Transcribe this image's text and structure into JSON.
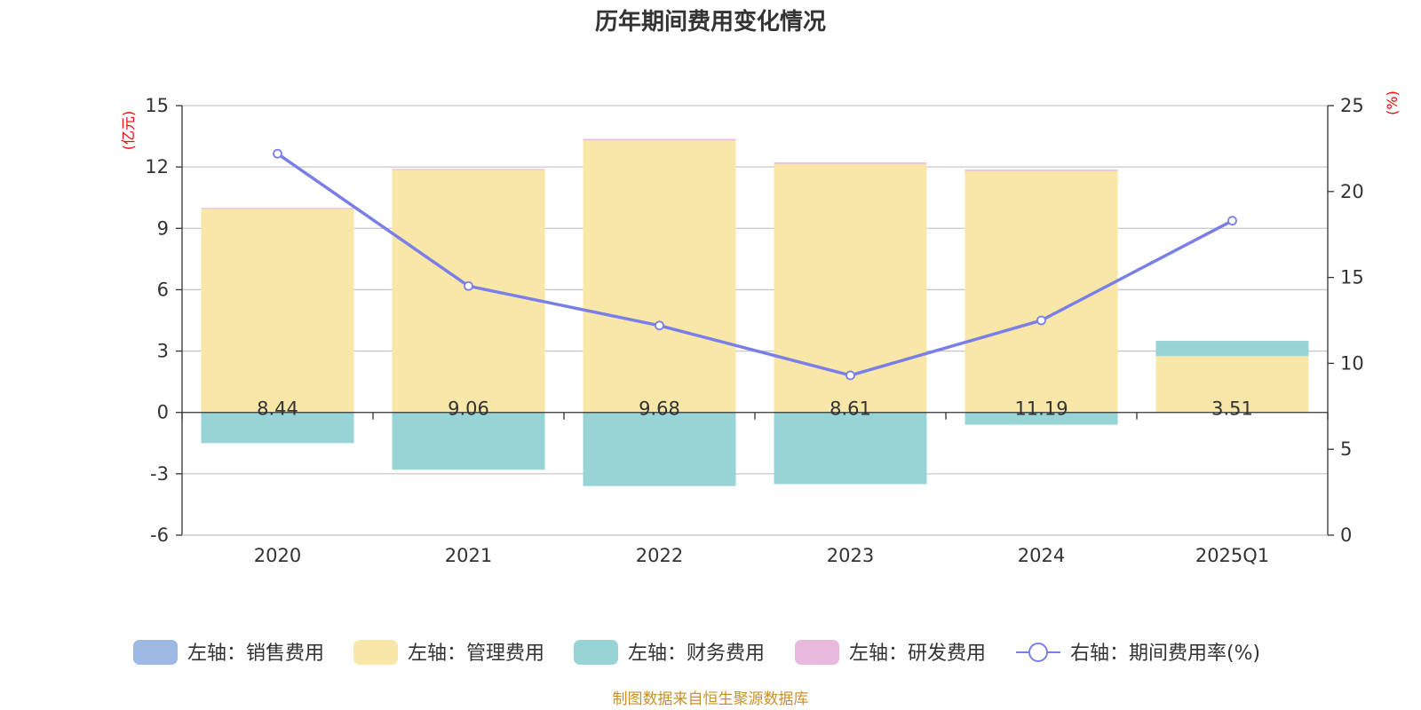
{
  "chart_data": {
    "type": "bar",
    "title": "历年期间费用变化情况",
    "categories": [
      "2020",
      "2021",
      "2022",
      "2023",
      "2024",
      "2025Q1"
    ],
    "left_axis": {
      "unit_label": "(亿元)",
      "ylim": [
        -6,
        15
      ],
      "ticks": [
        "15",
        "12",
        "9",
        "6",
        "3",
        "0",
        "-3",
        "-6"
      ]
    },
    "right_axis": {
      "unit_label": "(%)",
      "ylim": [
        0,
        25
      ],
      "ticks": [
        "25",
        "20",
        "15",
        "10",
        "5",
        "0"
      ]
    },
    "series": [
      {
        "name": "左轴：销售费用",
        "axis": "left",
        "color": "#9db8e2",
        "values": [
          0,
          0,
          0,
          0,
          0,
          0
        ]
      },
      {
        "name": "左轴：管理费用",
        "axis": "left",
        "color": "#f8e7a9",
        "values": [
          9.95,
          11.85,
          13.3,
          12.15,
          11.8,
          2.75
        ]
      },
      {
        "name": "左轴：财务费用",
        "axis": "left",
        "color": "#98d4d6",
        "values": [
          -1.5,
          -2.8,
          -3.6,
          -3.5,
          -0.6,
          0.75
        ]
      },
      {
        "name": "左轴：研发费用",
        "axis": "left",
        "color": "#e8b9dc",
        "values": [
          0.05,
          0.05,
          0.07,
          0.07,
          0.07,
          0.0
        ]
      },
      {
        "name": "右轴：期间费用率(%)",
        "axis": "right",
        "type": "line",
        "color": "#7a7fe8",
        "values": [
          22.2,
          14.5,
          12.2,
          9.3,
          12.5,
          18.3
        ]
      }
    ],
    "data_labels": [
      "8.44",
      "9.06",
      "9.68",
      "8.61",
      "11.19",
      "3.51"
    ],
    "source": "制图数据来自恒生聚源数据库"
  }
}
